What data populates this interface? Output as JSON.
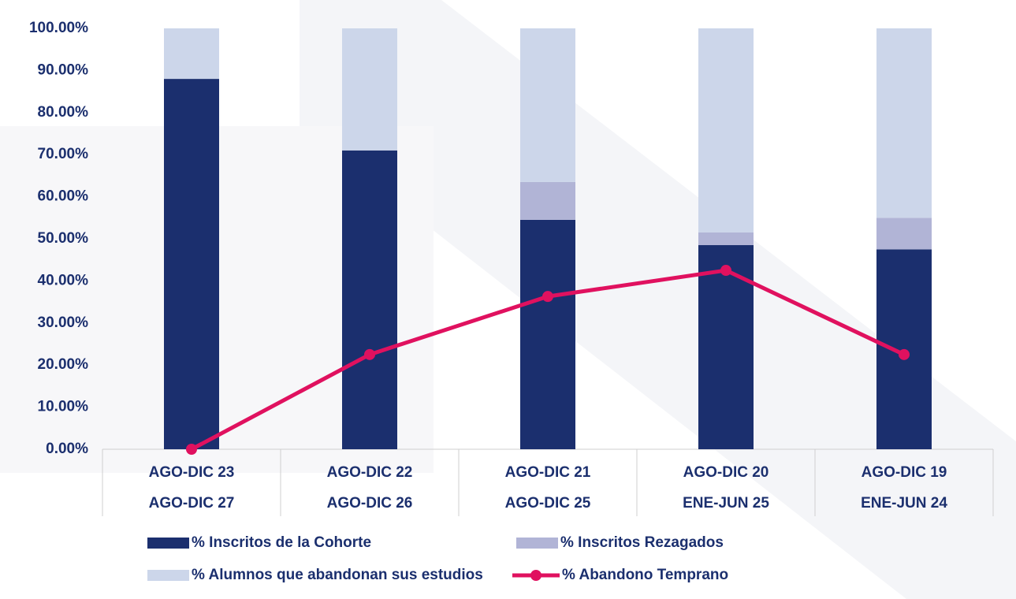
{
  "chart_data": {
    "type": "bar",
    "stacked": true,
    "categories": [
      [
        "AGO-DIC 23",
        "AGO-DIC 27"
      ],
      [
        "AGO-DIC 22",
        "AGO-DIC 26"
      ],
      [
        "AGO-DIC 21",
        "AGO-DIC 25"
      ],
      [
        "AGO-DIC 20",
        "ENE-JUN 25"
      ],
      [
        "AGO-DIC 19",
        "ENE-JUN 24"
      ]
    ],
    "series": [
      {
        "name": "% Inscritos de la Cohorte",
        "type": "bar",
        "color": "#1b2f6e",
        "values": [
          88,
          71,
          54.5,
          48.5,
          47.5
        ]
      },
      {
        "name": "% Inscritos Rezagados",
        "type": "bar",
        "color": "#b1b4d6",
        "values": [
          0,
          0,
          9,
          3,
          7.5
        ]
      },
      {
        "name": "% Alumnos que abandonan sus estudios",
        "type": "bar",
        "color": "#ccd6ea",
        "values": [
          12,
          29,
          36.5,
          48.5,
          45
        ]
      },
      {
        "name": "% Abandono Temprano",
        "type": "line",
        "color": "#e0115f",
        "values": [
          0,
          22.5,
          36.3,
          42.5,
          22.5
        ]
      }
    ],
    "ylim": [
      0,
      100
    ],
    "yticks": [
      {
        "value": 0,
        "label": "0.00%"
      },
      {
        "value": 10,
        "label": "10.00%"
      },
      {
        "value": 20,
        "label": "20.00%"
      },
      {
        "value": 30,
        "label": "30.00%"
      },
      {
        "value": 40,
        "label": "40.00%"
      },
      {
        "value": 50,
        "label": "50.00%"
      },
      {
        "value": 60,
        "label": "60.00%"
      },
      {
        "value": 70,
        "label": "70.00%"
      },
      {
        "value": 80,
        "label": "80.00%"
      },
      {
        "value": 90,
        "label": "90.00%"
      },
      {
        "value": 100,
        "label": "100.00%"
      }
    ],
    "legend": "bottom"
  }
}
